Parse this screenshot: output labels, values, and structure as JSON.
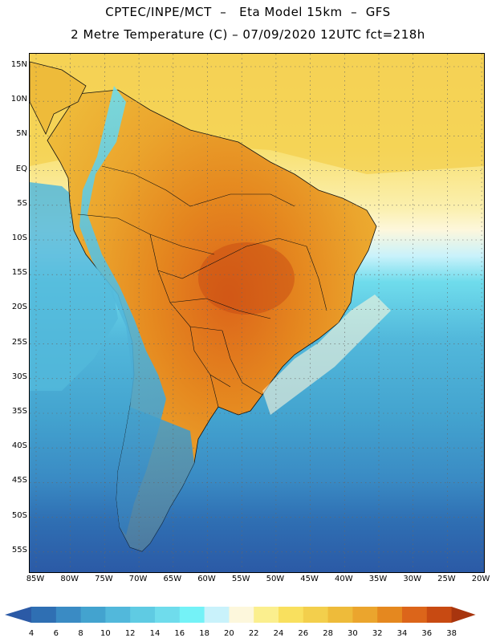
{
  "header": {
    "line1": "CPTEC/INPE/MCT  –   Eta Model 15km  –  GFS",
    "line2": "2 Metre Temperature (C) – 07/09/2020 12UTC fct=218h"
  },
  "map": {
    "variable": "2 Metre Temperature",
    "units": "C",
    "lat_labels": [
      "15N",
      "10N",
      "5N",
      "EQ",
      "5S",
      "10S",
      "15S",
      "20S",
      "25S",
      "30S",
      "35S",
      "40S",
      "45S",
      "50S",
      "55S"
    ],
    "lon_labels": [
      "85W",
      "80W",
      "75W",
      "70W",
      "65W",
      "60W",
      "55W",
      "50W",
      "45W",
      "40W",
      "35W",
      "30W",
      "25W",
      "20W"
    ]
  },
  "colorbar": {
    "labels": [
      "4",
      "6",
      "8",
      "10",
      "12",
      "14",
      "16",
      "18",
      "20",
      "22",
      "24",
      "26",
      "28",
      "30",
      "32",
      "34",
      "36",
      "38"
    ],
    "colors": [
      "#2b5aa6",
      "#2f6fb3",
      "#3a8bc4",
      "#43a3cf",
      "#52b8db",
      "#5fcbe3",
      "#6fdcec",
      "#74f2f7",
      "#c9f2fb",
      "#fdf7dc",
      "#fbef8e",
      "#f9e05e",
      "#f3cf4c",
      "#eebb3a",
      "#eba52d",
      "#e5881f",
      "#dc651a",
      "#c84a12",
      "#a8350e"
    ]
  }
}
